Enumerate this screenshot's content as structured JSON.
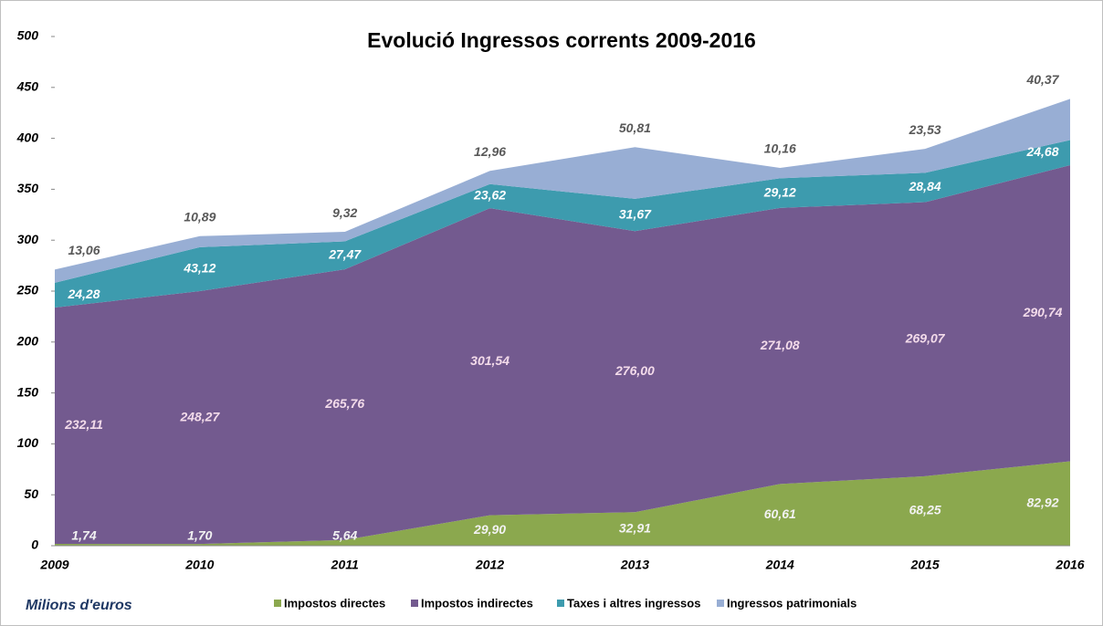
{
  "chart_data": {
    "type": "stacked_area",
    "title": "Evolució Ingressos corrents 2009-2016",
    "y_label": "Milions d'euros",
    "categories": [
      "2009",
      "2010",
      "2011",
      "2012",
      "2013",
      "2014",
      "2015",
      "2016"
    ],
    "ylim": [
      0,
      500
    ],
    "yticks": [
      0,
      50,
      100,
      150,
      200,
      250,
      300,
      350,
      400,
      450,
      500
    ],
    "series": [
      {
        "name": "Impostos directes",
        "color": "#8ba84e",
        "label_color": "#f2f2f2",
        "values": [
          1.74,
          1.7,
          5.64,
          29.9,
          32.91,
          60.61,
          68.25,
          82.92
        ],
        "value_labels": [
          "1,74",
          "1,70",
          "5,64",
          "29,90",
          "32,91",
          "60,61",
          "68,25",
          "82,92"
        ]
      },
      {
        "name": "Impostos indirectes",
        "color": "#735a8f",
        "label_color": "#f3dbea",
        "values": [
          232.11,
          248.27,
          265.76,
          301.54,
          276.0,
          271.08,
          269.07,
          290.74
        ],
        "value_labels": [
          "232,11",
          "248,27",
          "265,76",
          "301,54",
          "276,00",
          "271,08",
          "269,07",
          "290,74"
        ]
      },
      {
        "name": "Taxes i altres ingressos",
        "color": "#3d9bae",
        "label_color": "#ffffff",
        "values": [
          24.28,
          43.12,
          27.47,
          23.62,
          31.67,
          29.12,
          28.84,
          24.68
        ],
        "value_labels": [
          "24,28",
          "43,12",
          "27,47",
          "23,62",
          "31,67",
          "29,12",
          "28,84",
          "24,68"
        ]
      },
      {
        "name": "Ingressos patrimonials",
        "color": "#98aed4",
        "label_color": "#595959",
        "values": [
          13.06,
          10.89,
          9.32,
          12.96,
          50.81,
          10.16,
          23.53,
          40.37
        ],
        "value_labels": [
          "13,06",
          "10,89",
          "9,32",
          "12,96",
          "50,81",
          "10,16",
          "23,53",
          "40,37"
        ]
      }
    ]
  }
}
